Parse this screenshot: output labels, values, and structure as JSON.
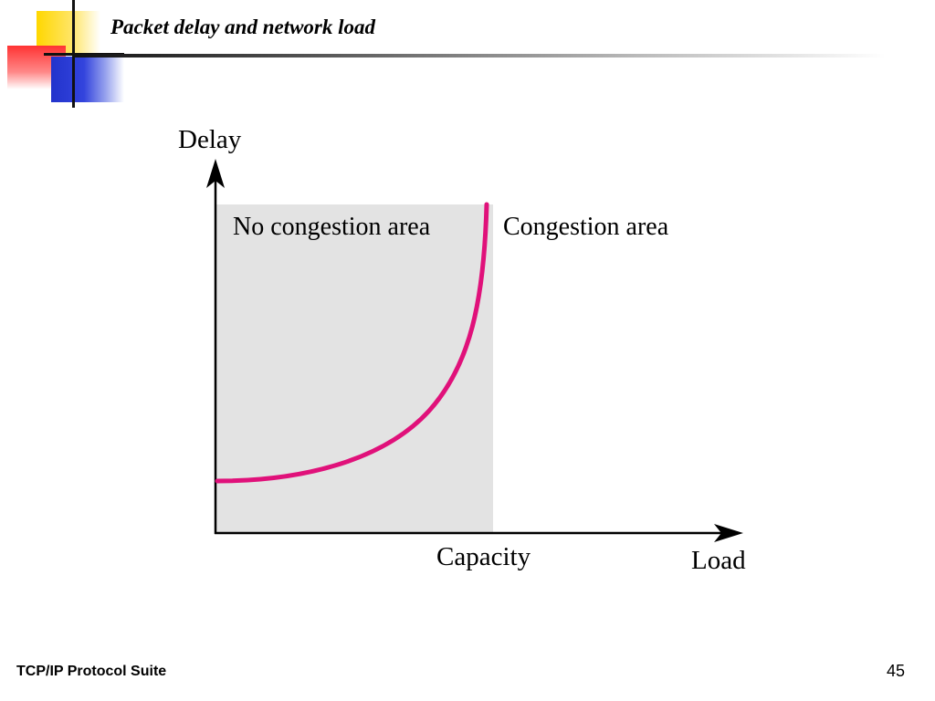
{
  "slide": {
    "title": "Packet delay and network load",
    "footer": "TCP/IP Protocol Suite",
    "page_number": "45"
  },
  "diagram": {
    "y_axis_label": "Delay",
    "x_axis_label": "Load",
    "capacity_label": "Capacity",
    "left_region_label": "No congestion area",
    "right_region_label": "Congestion area",
    "curve_color": "#e0117a",
    "region_fill": "#e3e3e3"
  },
  "decoration": {
    "logo_colors": {
      "yellow": "#ffd700",
      "red": "#ff3333",
      "blue": "#2233cc"
    }
  }
}
